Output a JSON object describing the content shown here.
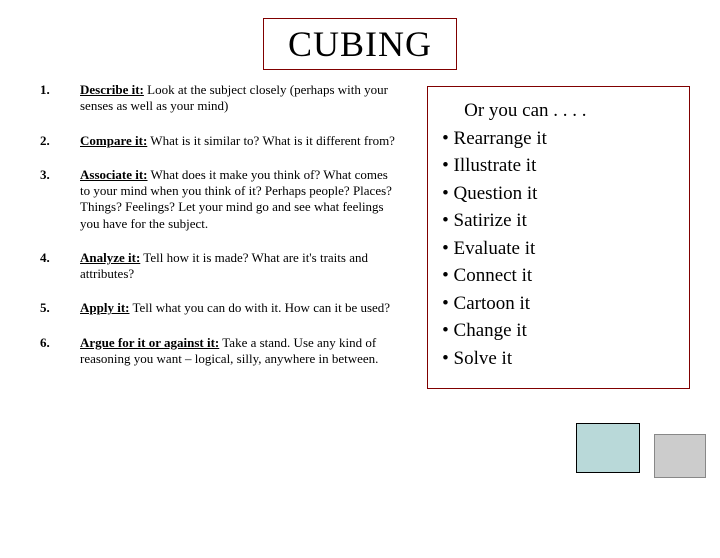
{
  "title": "CUBING",
  "left": [
    {
      "num": "1.",
      "label": "Describe it:",
      "text": " Look at the subject closely (perhaps with your senses as well as your mind)"
    },
    {
      "num": "2.",
      "label": " Compare it:",
      "text": " What is it similar to? What is it different from?"
    },
    {
      "num": "3.",
      "label": "Associate it:",
      "text": " What does it make you think of? What comes to your mind when you think of it? Perhaps people? Places? Things? Feelings? Let your mind go and see what feelings you have for the subject."
    },
    {
      "num": "4.",
      "label": "Analyze it:",
      "text": " Tell how it is made? What are it's traits and attributes?"
    },
    {
      "num": "5.",
      "label": "Apply it:",
      "text": " Tell what you can do with it. How can it be used?"
    },
    {
      "num": "6.",
      "label": "Argue for it or against it:",
      "text": " Take a stand. Use any kind of reasoning you want – logical, silly, anywhere in between."
    }
  ],
  "right": {
    "heading": "Or you can . . . .",
    "items": [
      "Rearrange it",
      "Illustrate it",
      "Question it",
      "Satirize it",
      "Evaluate it",
      "Connect it",
      "Cartoon it",
      "Change it",
      "Solve it"
    ]
  },
  "colors": {
    "border": "#800000",
    "shape1_fill": "#b9d9d9",
    "shape2_fill": "#cccccc"
  }
}
